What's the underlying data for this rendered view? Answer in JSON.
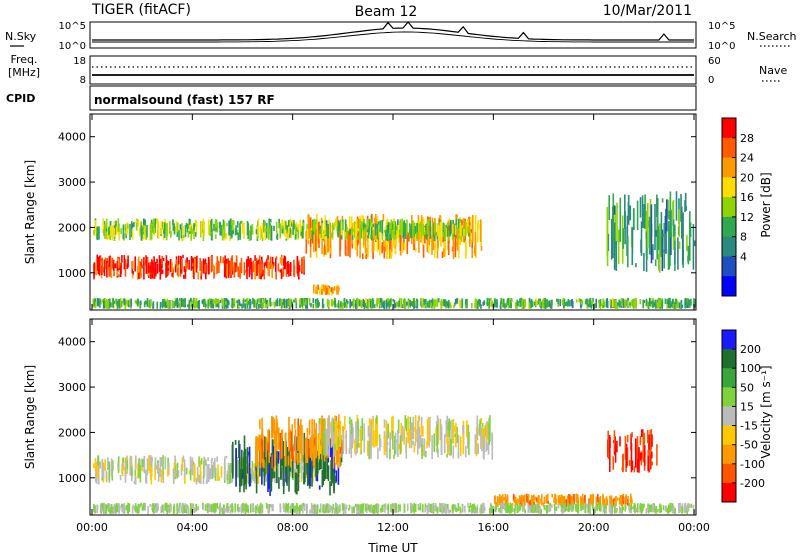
{
  "header": {
    "title": "TIGER (fitACF)",
    "beam": "Beam 12",
    "date": "10/Mar/2011"
  },
  "strips": {
    "nsky": {
      "label": "N.Sky",
      "ticks_left": [
        "10^5",
        "10^0"
      ],
      "right_label": "N.Search",
      "ticks_right": [
        "10^5",
        "10^0"
      ]
    },
    "freq": {
      "label_line1": "Freq.",
      "label_line2": "[MHz]",
      "ticks_left": [
        "18",
        "8"
      ],
      "right_label": "Nave",
      "ticks_right": [
        "60",
        "0"
      ]
    },
    "cpid": {
      "label": "CPID",
      "text": "normalsound (fast) 157 RF"
    }
  },
  "axes": {
    "ylabel": "Slant Range [km]",
    "xlabel": "Time UT",
    "yticks": [
      "4000",
      "3000",
      "2000",
      "1000"
    ],
    "xticks": [
      "00:00",
      "04:00",
      "08:00",
      "12:00",
      "16:00",
      "20:00",
      "00:00"
    ]
  },
  "power_bar": {
    "label": "Power [dB]",
    "ticks": [
      "28",
      "24",
      "20",
      "16",
      "12",
      "8",
      "4"
    ],
    "colors": [
      "#ff0000",
      "#ff5a00",
      "#ff9900",
      "#ffdd00",
      "#8fd400",
      "#2fa84f",
      "#2b8a7f",
      "#1f4fbf",
      "#0000ff"
    ]
  },
  "velocity_bar": {
    "label": "Velocity [m s⁻¹]",
    "ticks": [
      "200",
      "100",
      "50",
      "15",
      "-15",
      "-50",
      "-100",
      "-200"
    ],
    "colors": [
      "#1a1aff",
      "#1f6f2f",
      "#3aa53a",
      "#7fd23c",
      "#bbbbbb",
      "#ffc800",
      "#ff9900",
      "#ff5500",
      "#ff0000"
    ]
  },
  "chart_data": [
    {
      "type": "heatmap",
      "name": "power",
      "xlabel": "Time UT",
      "ylabel": "Slant Range [km]",
      "xlim": [
        0,
        24
      ],
      "ylim": [
        180,
        4500
      ],
      "zlabel": "Power [dB]",
      "zlim": [
        0,
        30
      ],
      "echo_regions": [
        {
          "t": [
            0,
            8.5
          ],
          "range": [
            850,
            1400
          ],
          "power": 28
        },
        {
          "t": [
            8.5,
            15.5
          ],
          "range": [
            1300,
            2300
          ],
          "power": 22
        },
        {
          "t": [
            0,
            15
          ],
          "range": [
            1700,
            2200
          ],
          "power": 14
        },
        {
          "t": [
            20.5,
            24
          ],
          "range": [
            1000,
            2800
          ],
          "power": 10
        },
        {
          "t": [
            0,
            24
          ],
          "range": [
            200,
            450
          ],
          "power": 12
        },
        {
          "t": [
            8.8,
            9.8
          ],
          "range": [
            500,
            750
          ],
          "power": 22
        }
      ]
    },
    {
      "type": "heatmap",
      "name": "velocity",
      "xlabel": "Time UT",
      "ylabel": "Slant Range [km]",
      "xlim": [
        0,
        24
      ],
      "ylim": [
        180,
        4500
      ],
      "zlabel": "Velocity [m s-1]",
      "zlim": [
        -250,
        250
      ],
      "echo_regions": [
        {
          "t": [
            0,
            9
          ],
          "range": [
            850,
            1500
          ],
          "velocity": 0
        },
        {
          "t": [
            5.5,
            10
          ],
          "range": [
            600,
            2000
          ],
          "velocity": 180
        },
        {
          "t": [
            6.5,
            10
          ],
          "range": [
            1200,
            2400
          ],
          "velocity": -80
        },
        {
          "t": [
            9,
            16
          ],
          "range": [
            1400,
            2400
          ],
          "velocity": 0
        },
        {
          "t": [
            20.5,
            22.5
          ],
          "range": [
            1100,
            2100
          ],
          "velocity": -200
        },
        {
          "t": [
            16,
            21.5
          ],
          "range": [
            350,
            650
          ],
          "velocity": -80
        },
        {
          "t": [
            0,
            24
          ],
          "range": [
            200,
            450
          ],
          "velocity": 20
        }
      ]
    }
  ]
}
